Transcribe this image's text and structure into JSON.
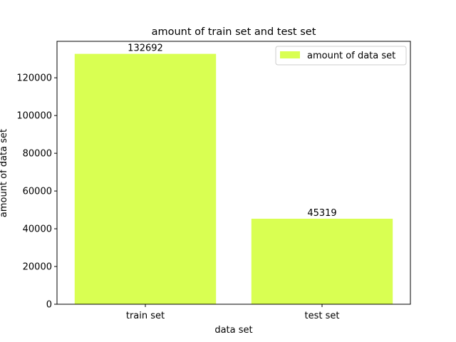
{
  "chart_data": {
    "type": "bar",
    "title": "amount of train set and test set",
    "xlabel": "data set",
    "ylabel": "amount of data set",
    "categories": [
      "train set",
      "test set"
    ],
    "series": [
      {
        "name": "amount of data set",
        "values": [
          132692,
          45319
        ]
      }
    ],
    "data_labels": [
      "132692",
      "45319"
    ],
    "ylim": [
      0,
      139326
    ],
    "yticks": [
      0,
      20000,
      40000,
      60000,
      80000,
      100000,
      120000
    ],
    "ytick_labels": [
      "0",
      "20000",
      "40000",
      "60000",
      "80000",
      "100000",
      "120000"
    ],
    "grid": false,
    "legend": {
      "position": "top-right",
      "entries": [
        "amount of data set"
      ]
    },
    "colors": {
      "bar": "#d9ff52",
      "axis": "#000000",
      "background": "#ffffff"
    }
  }
}
